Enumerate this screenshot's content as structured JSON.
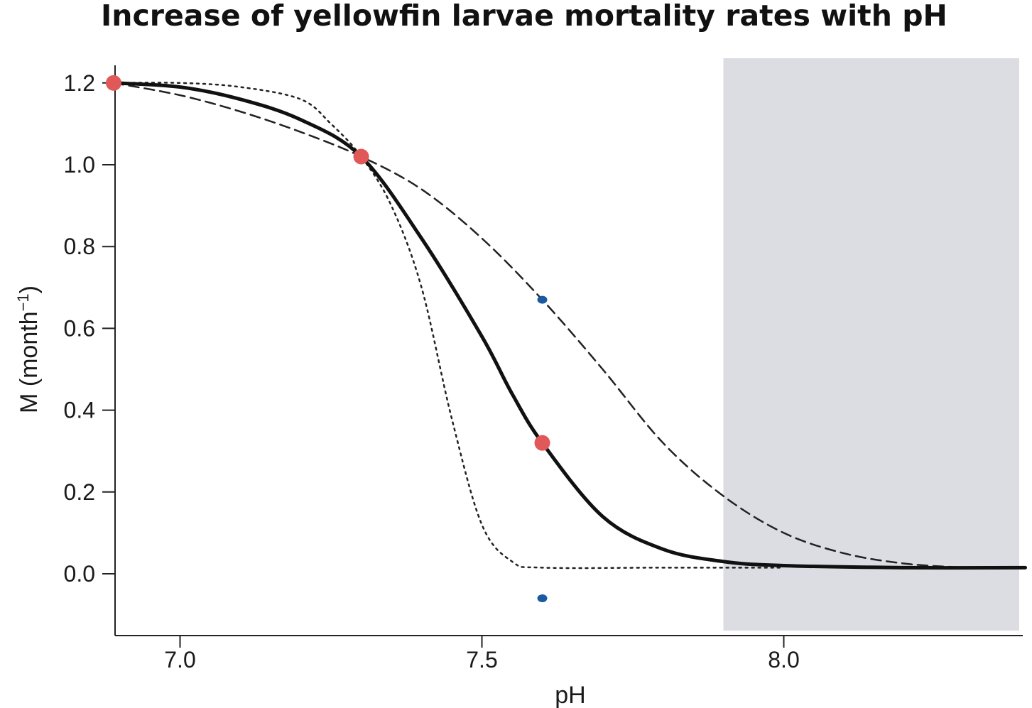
{
  "chart_data": {
    "type": "line",
    "title": "Increase of yellowfin larvae mortality rates with pH",
    "xlabel": "pH",
    "ylabel": "M (month",
    "ylabel_superscript": "−1",
    "ylabel_close": ")",
    "xlim": [
      6.85,
      8.45
    ],
    "ylim": [
      -0.15,
      1.25
    ],
    "x_ticks": [
      7.0,
      7.5,
      8.0
    ],
    "x_tick_labels": [
      "7.0",
      "7.5",
      "8.0"
    ],
    "y_ticks": [
      0.0,
      0.2,
      0.4,
      0.6,
      0.8,
      1.0,
      1.2
    ],
    "y_tick_labels": [
      "0.0",
      "0.2",
      "0.4",
      "0.6",
      "0.8",
      "1.0",
      "1.2"
    ],
    "grid": false,
    "shaded_region": {
      "x": [
        7.9,
        8.39
      ],
      "color": "#dcdde3"
    },
    "series": [
      {
        "style": "solid",
        "color": "#111111",
        "x": [
          6.89,
          7.0,
          7.1,
          7.2,
          7.3,
          7.4,
          7.5,
          7.55,
          7.6,
          7.7,
          7.8,
          7.9,
          8.0,
          8.2,
          8.4
        ],
        "y": [
          1.2,
          1.19,
          1.16,
          1.11,
          1.02,
          0.82,
          0.58,
          0.44,
          0.32,
          0.14,
          0.06,
          0.03,
          0.02,
          0.015,
          0.015
        ]
      },
      {
        "style": "dashed",
        "color": "#222222",
        "x": [
          6.89,
          7.0,
          7.1,
          7.2,
          7.3,
          7.4,
          7.5,
          7.6,
          7.7,
          7.8,
          7.9,
          8.0,
          8.1,
          8.2,
          8.3
        ],
        "y": [
          1.2,
          1.17,
          1.13,
          1.08,
          1.02,
          0.94,
          0.82,
          0.67,
          0.5,
          0.32,
          0.19,
          0.1,
          0.05,
          0.025,
          0.015
        ]
      },
      {
        "style": "dotted",
        "color": "#222222",
        "x": [
          6.89,
          7.0,
          7.1,
          7.2,
          7.25,
          7.3,
          7.35,
          7.4,
          7.45,
          7.5,
          7.55,
          7.6,
          7.8,
          8.0
        ],
        "y": [
          1.2,
          1.2,
          1.19,
          1.16,
          1.1,
          1.02,
          0.9,
          0.7,
          0.38,
          0.12,
          0.03,
          0.015,
          0.015,
          0.015
        ]
      }
    ],
    "points": [
      {
        "x": 6.89,
        "y": 1.2,
        "color": "#e05858",
        "kind": "large"
      },
      {
        "x": 7.3,
        "y": 1.02,
        "color": "#e05858",
        "kind": "large"
      },
      {
        "x": 7.6,
        "y": 0.32,
        "color": "#e05858",
        "kind": "large"
      },
      {
        "x": 7.6,
        "y": 0.67,
        "color": "#1a5aa0",
        "kind": "small"
      },
      {
        "x": 7.6,
        "y": -0.06,
        "color": "#1a5aa0",
        "kind": "small"
      }
    ]
  }
}
